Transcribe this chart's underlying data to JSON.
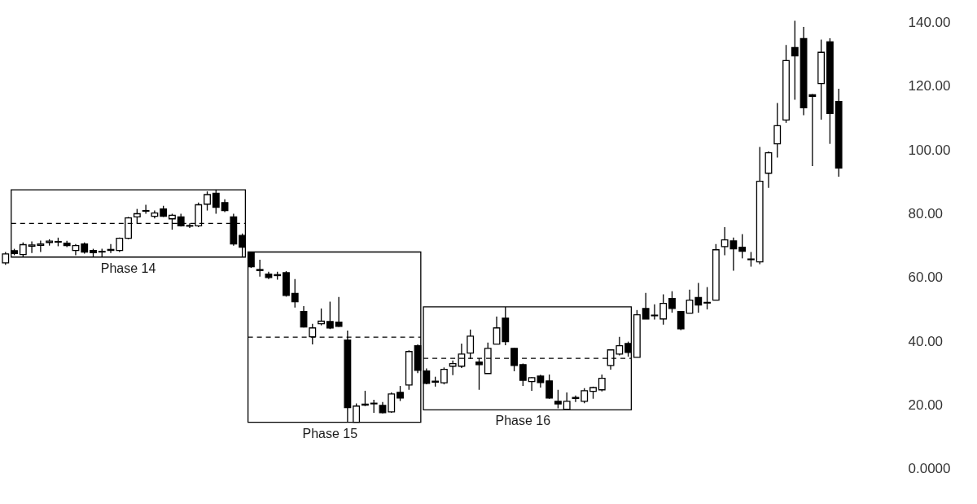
{
  "chart_data": {
    "type": "candlestick",
    "categories": [
      null,
      null,
      null,
      null,
      null,
      null,
      null,
      null,
      null,
      null,
      null,
      null,
      null,
      null,
      null,
      null,
      null,
      null,
      null,
      null,
      null,
      null,
      null,
      null,
      null,
      null,
      null,
      null,
      null,
      null,
      null,
      null,
      null,
      null,
      null,
      null,
      null,
      null,
      null,
      null,
      null,
      null,
      null,
      null,
      null,
      null,
      null,
      null,
      null,
      null,
      null,
      null,
      null,
      null,
      null,
      null,
      null,
      null,
      null,
      null,
      null,
      null,
      null,
      null,
      null,
      null,
      null,
      null,
      null,
      null,
      null,
      null,
      null,
      null,
      null,
      null,
      null,
      null,
      null,
      null,
      null,
      null,
      null,
      null,
      null,
      null,
      null,
      null,
      null,
      null,
      null,
      null,
      null,
      null,
      null,
      null,
      null,
      null,
      null,
      null
    ],
    "ohlc": [
      [
        64.6,
        68,
        64,
        67.4
      ],
      [
        68.4,
        69,
        67,
        67.5
      ],
      [
        67.2,
        71,
        66.4,
        70.3
      ],
      [
        69.8,
        71.3,
        67.7,
        70.2
      ],
      [
        70.1,
        71.6,
        68,
        70.5
      ],
      [
        71,
        72,
        70,
        71.4
      ],
      [
        71.1,
        72.5,
        69.8,
        71.3
      ],
      [
        70.8,
        71.5,
        69.5,
        70
      ],
      [
        68.5,
        70.5,
        67,
        70
      ],
      [
        70.5,
        71,
        67.5,
        68
      ],
      [
        68.5,
        69,
        66.5,
        67.8
      ],
      [
        68,
        69,
        66.5,
        68.2
      ],
      [
        68.5,
        70.5,
        67.7,
        68.8
      ],
      [
        68.5,
        72.5,
        68,
        72.3
      ],
      [
        72.3,
        79,
        72,
        78.7
      ],
      [
        79,
        81.5,
        77,
        80
      ],
      [
        80.8,
        82.8,
        80,
        81
      ],
      [
        79.2,
        81,
        78.5,
        80.2
      ],
      [
        81.5,
        82.5,
        79,
        79.2
      ],
      [
        78.4,
        80,
        75,
        79.5
      ],
      [
        79,
        80,
        76,
        76.2
      ],
      [
        76.3,
        77,
        75.5,
        76.1
      ],
      [
        76.2,
        83.5,
        75.8,
        82.8
      ],
      [
        83,
        87,
        81,
        86
      ],
      [
        86.4,
        87.5,
        80,
        82
      ],
      [
        83.5,
        84.5,
        80.5,
        81
      ],
      [
        79,
        80,
        70,
        70.5
      ],
      [
        73.2,
        73.8,
        66.4,
        69.5
      ],
      [
        67.7,
        68,
        63,
        63.4
      ],
      [
        62.2,
        65.6,
        60.3,
        62.5
      ],
      [
        61.1,
        61.8,
        59.5,
        60
      ],
      [
        60.6,
        61.8,
        59.3,
        60.9
      ],
      [
        61.5,
        62,
        54,
        54.4
      ],
      [
        55,
        59.5,
        50.6,
        52.4
      ],
      [
        49.3,
        51,
        44.3,
        44.5
      ],
      [
        41.4,
        45.5,
        39,
        44.2
      ],
      [
        45.5,
        50.3,
        45,
        46.3
      ],
      [
        46.2,
        52.4,
        43.8,
        44.2
      ],
      [
        46,
        53.9,
        44.5,
        44.7
      ],
      [
        40.4,
        43.4,
        14.6,
        19.2
      ],
      [
        14.6,
        20.5,
        14.6,
        19.7
      ],
      [
        20,
        24.5,
        19.7,
        20.3
      ],
      [
        20.6,
        21.7,
        17.6,
        20.4
      ],
      [
        19.9,
        21,
        17.4,
        17.6
      ],
      [
        17.9,
        24,
        17.6,
        23.5
      ],
      [
        24,
        26,
        21.3,
        22.2
      ],
      [
        26.3,
        37.2,
        24.8,
        36.8
      ],
      [
        38.6,
        39,
        30,
        30.9
      ],
      [
        30.7,
        31.5,
        26.5,
        26.8
      ],
      [
        27.2,
        28.9,
        25.8,
        27.5
      ],
      [
        27,
        31.8,
        26.5,
        31.2
      ],
      [
        32.2,
        34,
        29.4,
        33
      ],
      [
        32.2,
        39.3,
        31.6,
        36
      ],
      [
        36.3,
        43.7,
        34.5,
        41.6
      ],
      [
        33.5,
        34.7,
        24.8,
        32.7
      ],
      [
        29.9,
        39.6,
        29.9,
        37.8
      ],
      [
        39.1,
        47.8,
        39.1,
        44.2
      ],
      [
        47.3,
        50.8,
        38.8,
        39.9
      ],
      [
        37.8,
        38,
        30.6,
        32.4
      ],
      [
        32.7,
        33,
        26,
        27.8
      ],
      [
        27.4,
        28.8,
        24.5,
        28.6
      ],
      [
        29.1,
        29.5,
        25.5,
        27.1
      ],
      [
        27.6,
        29.6,
        22,
        22.2
      ],
      [
        21.2,
        24.8,
        19,
        20.4
      ],
      [
        18.7,
        24,
        18.5,
        21.2
      ],
      [
        22.1,
        23,
        21,
        22.4
      ],
      [
        21.2,
        25.3,
        20.6,
        24.5
      ],
      [
        24.3,
        25.8,
        22,
        25.5
      ],
      [
        24.8,
        29.6,
        24.3,
        28.4
      ],
      [
        32.4,
        37.5,
        31.1,
        37.3
      ],
      [
        36,
        41.4,
        35.6,
        38.6
      ],
      [
        39.3,
        39.9,
        35.2,
        36.5
      ],
      [
        35,
        49.8,
        35,
        48.3
      ],
      [
        50.3,
        55.2,
        47,
        47
      ],
      [
        48,
        51.6,
        46.8,
        48.2
      ],
      [
        47,
        54.7,
        45.2,
        51.9
      ],
      [
        53.4,
        55.7,
        49,
        50.3
      ],
      [
        49.3,
        49.3,
        43.5,
        43.9
      ],
      [
        48.8,
        56.2,
        48.8,
        52.9
      ],
      [
        53.7,
        58.3,
        49,
        51.4
      ],
      [
        52,
        57,
        50,
        52.2
      ],
      [
        52.9,
        70.5,
        52.9,
        68.7
      ],
      [
        69.7,
        75.8,
        67,
        71.8
      ],
      [
        71.5,
        72.5,
        62.1,
        69
      ],
      [
        69.5,
        73.6,
        66,
        68.2
      ],
      [
        65.6,
        68,
        63.4,
        65.8
      ],
      [
        64.9,
        100.9,
        64.2,
        90.2
      ],
      [
        92.7,
        99.5,
        88.1,
        99.1
      ],
      [
        101.9,
        114.7,
        97.6,
        107.6
      ],
      [
        109.4,
        132.9,
        108.5,
        128
      ],
      [
        132.1,
        140.5,
        115.7,
        129.5
      ],
      [
        134.9,
        138.6,
        110.9,
        113.2
      ],
      [
        117.3,
        117.5,
        94.9,
        116.8
      ],
      [
        120.8,
        134.6,
        109.5,
        130.6
      ],
      [
        133.9,
        135,
        101.9,
        111.4
      ],
      [
        115.2,
        119.2,
        91.6,
        94.3
      ],
      null,
      null,
      null,
      null
    ],
    "ylim": [
      -11,
      147
    ],
    "yticks": [
      {
        "value": 0,
        "label": "0.0000"
      },
      {
        "value": 20,
        "label": "20.00"
      },
      {
        "value": 40,
        "label": "40.00"
      },
      {
        "value": 60,
        "label": "60.00"
      },
      {
        "value": 80,
        "label": "80.00"
      },
      {
        "value": 100,
        "label": "100.00"
      },
      {
        "value": 120,
        "label": "120.00"
      },
      {
        "value": 140,
        "label": "140.00"
      }
    ],
    "tick_labels": "y",
    "annotations": [
      "Phase 14",
      "Phase 15",
      "Phase 16"
    ]
  }
}
